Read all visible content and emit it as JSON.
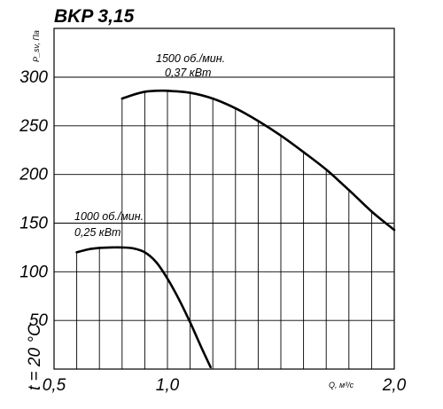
{
  "chart_data": {
    "type": "line",
    "title": "BKP 3,15",
    "ylabel": "P_sv, Па",
    "xlabel": "Q, м³/с",
    "temperature_note": "t = 20 °C",
    "xlim": [
      0.5,
      2.0
    ],
    "ylim": [
      0,
      300
    ],
    "x_ticks": [
      {
        "value": 0.5,
        "label": "0,5"
      },
      {
        "value": 1.0,
        "label": "1,0"
      },
      {
        "value": 2.0,
        "label": "2,0"
      }
    ],
    "y_ticks": [
      {
        "value": 50,
        "label": "50"
      },
      {
        "value": 100,
        "label": "100"
      },
      {
        "value": 150,
        "label": "150"
      },
      {
        "value": 200,
        "label": "200"
      },
      {
        "value": 250,
        "label": "250"
      },
      {
        "value": 300,
        "label": "300"
      }
    ],
    "series": [
      {
        "label_line1": "1500 об./мин.",
        "label_line2": "0,37 кВт",
        "x": [
          0.8,
          0.85,
          0.9,
          0.95,
          1.0,
          1.1,
          1.2,
          1.3,
          1.4,
          1.5,
          1.6,
          1.7,
          1.8,
          1.9,
          2.0
        ],
        "y": [
          278,
          282,
          285,
          286,
          286,
          284,
          278,
          268,
          255,
          240,
          223,
          205,
          184,
          162,
          143
        ]
      },
      {
        "label_line1": "1000 об./мин.",
        "label_line2": "0,25 кВт",
        "x": [
          0.6,
          0.65,
          0.7,
          0.75,
          0.8,
          0.85,
          0.9,
          0.95,
          1.0,
          1.05,
          1.1,
          1.15,
          1.19
        ],
        "y": [
          120,
          123,
          124.5,
          125,
          125,
          124,
          120,
          110,
          93,
          72,
          48,
          22,
          2
        ]
      }
    ]
  }
}
